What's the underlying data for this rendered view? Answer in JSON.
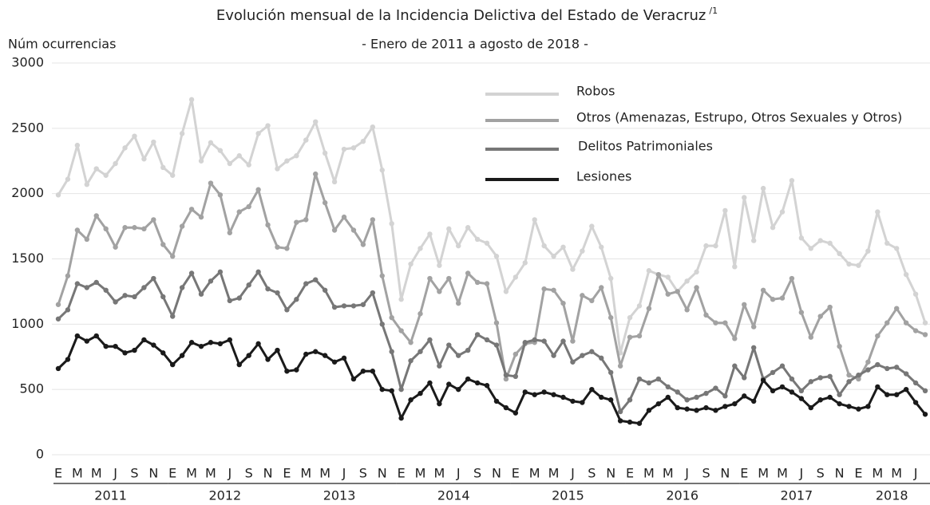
{
  "chart_data": {
    "type": "line",
    "title": "Evolución mensual de la Incidencia Delictiva del Estado de Veracruz",
    "title_note": "/1",
    "subtitle": "- Enero de 2011 a agosto de 2018 -",
    "y_label": "Núm ocurrencias",
    "ylim": [
      0,
      3000
    ],
    "yticks": [
      0,
      500,
      1000,
      1500,
      2000,
      2500,
      3000
    ],
    "grid": true,
    "legend": "top-right",
    "years": [
      "2011",
      "2012",
      "2013",
      "2014",
      "2015",
      "2016",
      "2017",
      "2018"
    ],
    "categories": [
      "E",
      null,
      "M",
      null,
      "M",
      null,
      "J",
      null,
      "S",
      null,
      "N",
      null,
      "E",
      null,
      "M",
      null,
      "M",
      null,
      "J",
      null,
      "S",
      null,
      "N",
      null,
      "E",
      null,
      "M",
      null,
      "M",
      null,
      "J",
      null,
      "S",
      null,
      "N",
      null,
      "E",
      null,
      "M",
      null,
      "M",
      null,
      "J",
      null,
      "S",
      null,
      "N",
      null,
      "E",
      null,
      "M",
      null,
      "M",
      null,
      "J",
      null,
      "S",
      null,
      "N",
      null,
      "E",
      null,
      "M",
      null,
      "M",
      null,
      "J",
      null,
      "S",
      null,
      "N",
      null,
      "E",
      null,
      "M",
      null,
      "M",
      null,
      "J",
      null,
      "S",
      null,
      "N",
      null,
      "E",
      null,
      "M",
      null,
      "M",
      null,
      "J",
      null
    ],
    "series": [
      {
        "name": "Robos",
        "color": "#d3d3d3",
        "values": [
          1990,
          2110,
          2370,
          2070,
          2190,
          2140,
          2230,
          2350,
          2440,
          2265,
          2395,
          2200,
          2140,
          2460,
          2720,
          2250,
          2390,
          2330,
          2230,
          2290,
          2220,
          2460,
          2520,
          2190,
          2250,
          2290,
          2410,
          2550,
          2310,
          2090,
          2340,
          2350,
          2400,
          2510,
          2180,
          1770,
          1190,
          1460,
          1580,
          1690,
          1450,
          1730,
          1600,
          1740,
          1650,
          1620,
          1520,
          1250,
          1360,
          1470,
          1800,
          1600,
          1520,
          1590,
          1420,
          1560,
          1750,
          1590,
          1350,
          780,
          1050,
          1140,
          1410,
          1380,
          1360,
          1250,
          1330,
          1400,
          1600,
          1600,
          1870,
          1440,
          1970,
          1640,
          2040,
          1740,
          1860,
          2100,
          1660,
          1580,
          1640,
          1620,
          1540,
          1460,
          1450,
          1560,
          1860,
          1620,
          1580,
          1380,
          1230,
          1010
        ]
      },
      {
        "name": "Otros (Amenazas, Estrupo, Otros Sexuales y Otros)",
        "color": "#a2a2a2",
        "values": [
          1150,
          1370,
          1720,
          1650,
          1830,
          1730,
          1590,
          1740,
          1740,
          1730,
          1800,
          1610,
          1520,
          1750,
          1880,
          1820,
          2080,
          1990,
          1700,
          1860,
          1900,
          2030,
          1760,
          1590,
          1580,
          1780,
          1800,
          2150,
          1930,
          1720,
          1820,
          1720,
          1610,
          1800,
          1370,
          1050,
          950,
          860,
          1080,
          1350,
          1250,
          1350,
          1160,
          1390,
          1320,
          1310,
          1010,
          580,
          770,
          850,
          860,
          1270,
          1260,
          1160,
          870,
          1220,
          1180,
          1280,
          1050,
          680,
          900,
          910,
          1120,
          1380,
          1230,
          1250,
          1110,
          1280,
          1070,
          1010,
          1010,
          890,
          1150,
          980,
          1260,
          1190,
          1200,
          1350,
          1090,
          900,
          1060,
          1130,
          830,
          610,
          580,
          710,
          910,
          1010,
          1120,
          1010,
          950,
          920
        ]
      },
      {
        "name": "Delitos Patrimoniales",
        "color": "#777777",
        "values": [
          1040,
          1110,
          1310,
          1280,
          1320,
          1260,
          1170,
          1220,
          1210,
          1280,
          1350,
          1210,
          1060,
          1280,
          1390,
          1230,
          1330,
          1400,
          1180,
          1200,
          1300,
          1400,
          1270,
          1240,
          1110,
          1190,
          1310,
          1340,
          1260,
          1130,
          1140,
          1140,
          1150,
          1240,
          1000,
          790,
          500,
          720,
          790,
          880,
          680,
          840,
          760,
          800,
          920,
          880,
          840,
          610,
          600,
          860,
          880,
          870,
          760,
          870,
          710,
          760,
          790,
          740,
          630,
          330,
          420,
          580,
          550,
          580,
          520,
          480,
          420,
          440,
          470,
          510,
          450,
          680,
          590,
          820,
          580,
          630,
          680,
          580,
          490,
          560,
          590,
          600,
          460,
          560,
          610,
          650,
          690,
          660,
          670,
          620,
          550,
          490
        ]
      },
      {
        "name": "Lesiones",
        "color": "#1a1a1a",
        "values": [
          660,
          730,
          910,
          870,
          910,
          830,
          830,
          780,
          800,
          880,
          840,
          780,
          690,
          760,
          860,
          830,
          860,
          850,
          880,
          690,
          760,
          850,
          730,
          800,
          640,
          650,
          770,
          790,
          760,
          710,
          740,
          580,
          640,
          640,
          500,
          490,
          280,
          420,
          470,
          550,
          390,
          540,
          500,
          580,
          550,
          530,
          410,
          360,
          320,
          480,
          460,
          480,
          460,
          440,
          410,
          400,
          500,
          440,
          420,
          260,
          250,
          240,
          340,
          390,
          440,
          360,
          350,
          340,
          360,
          340,
          370,
          390,
          450,
          410,
          570,
          490,
          520,
          480,
          430,
          360,
          420,
          440,
          390,
          370,
          350,
          370,
          520,
          460,
          460,
          500,
          400,
          310
        ]
      }
    ]
  }
}
